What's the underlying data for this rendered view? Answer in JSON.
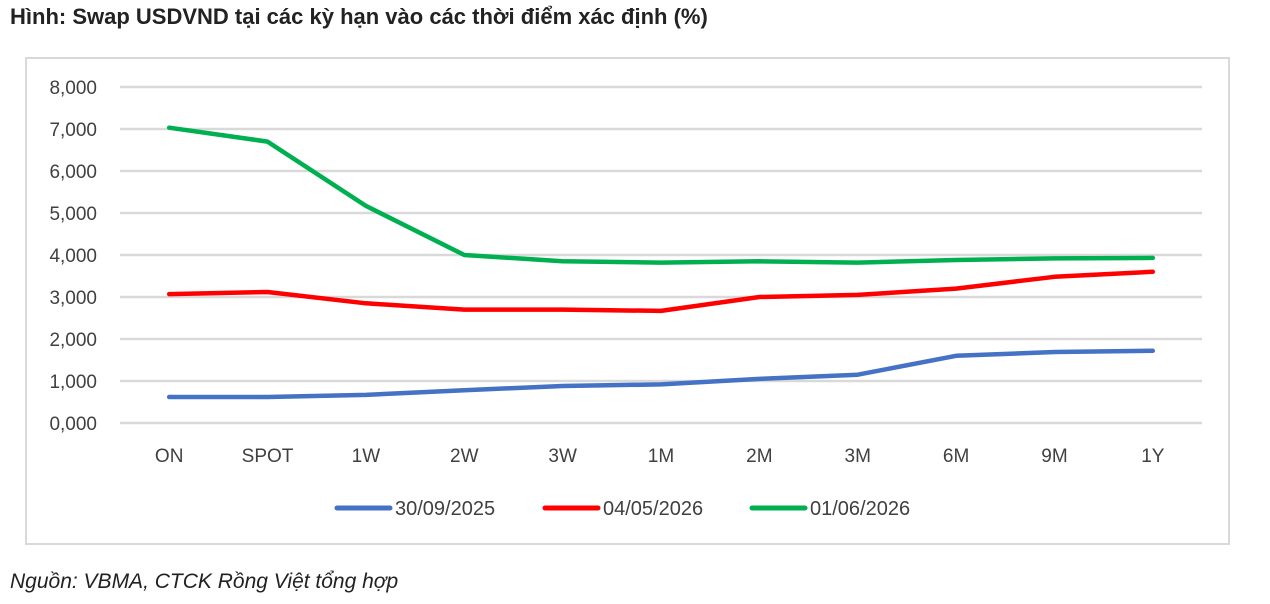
{
  "figure": {
    "title": "Hình: Swap USDVND tại các kỳ hạn vào các thời điểm xác định (%)",
    "source": "Nguồn: VBMA, CTCK Rồng Việt tổng hợp"
  },
  "chart_data": {
    "type": "line",
    "title": "Hình: Swap USDVND tại các kỳ hạn vào các thời điểm xác định (%)",
    "xlabel": "",
    "ylabel": "",
    "categories": [
      "ON",
      "SPOT",
      "1W",
      "2W",
      "3W",
      "1M",
      "2M",
      "3M",
      "6M",
      "9M",
      "1Y"
    ],
    "y_ticks": [
      "0,000",
      "1,000",
      "2,000",
      "3,000",
      "4,000",
      "5,000",
      "6,000",
      "7,000",
      "8,000"
    ],
    "ylim": [
      0,
      8
    ],
    "grid": true,
    "legend_position": "bottom",
    "series": [
      {
        "name": "30/09/2025",
        "color": "#4472c4",
        "values": [
          0.62,
          0.62,
          0.67,
          0.78,
          0.88,
          0.92,
          1.05,
          1.15,
          1.6,
          1.69,
          1.72
        ]
      },
      {
        "name": "04/05/2026",
        "color": "#ff0000",
        "values": [
          3.07,
          3.12,
          2.85,
          2.7,
          2.7,
          2.67,
          3.0,
          3.05,
          3.2,
          3.48,
          3.6
        ]
      },
      {
        "name": "01/06/2026",
        "color": "#00b050",
        "values": [
          7.03,
          6.7,
          5.17,
          4.0,
          3.85,
          3.82,
          3.85,
          3.82,
          3.88,
          3.92,
          3.93
        ]
      }
    ]
  }
}
